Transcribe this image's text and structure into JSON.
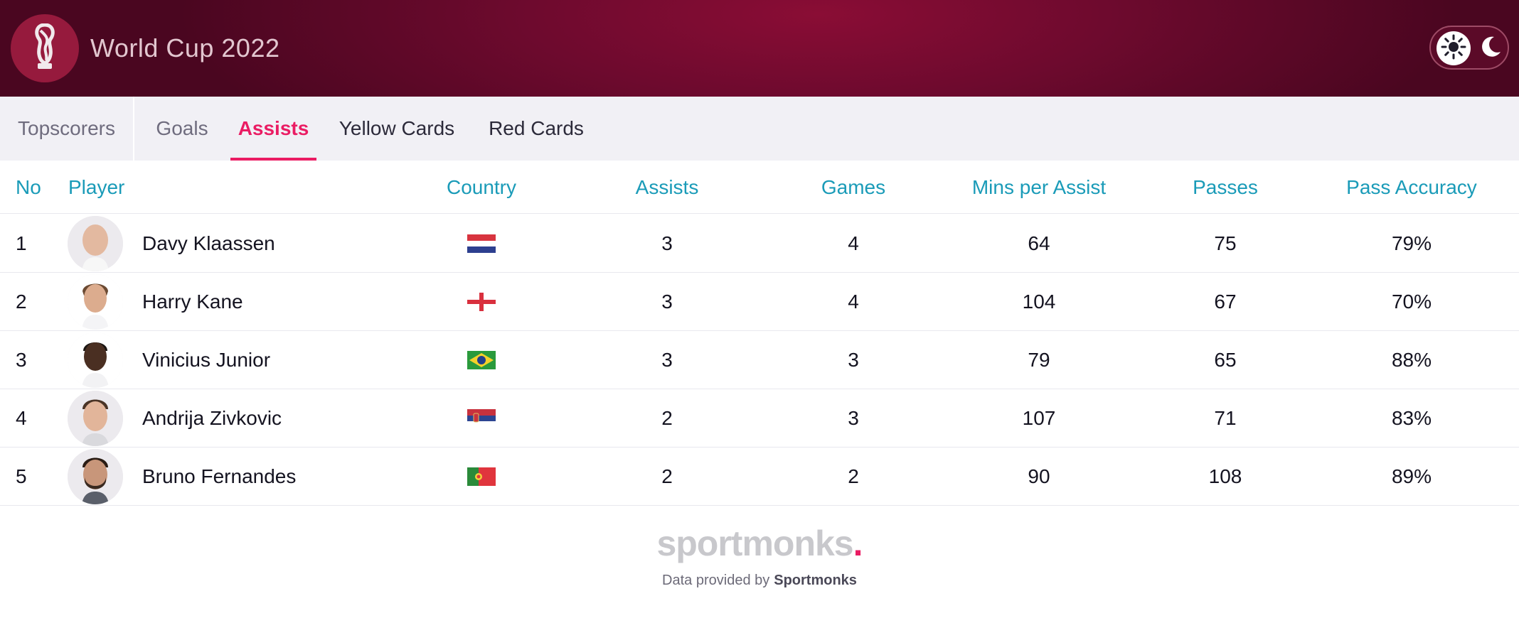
{
  "header": {
    "title": "World Cup 2022",
    "logo_icon": "world-cup-trophy-icon",
    "theme_toggle": {
      "light_icon": "sun-icon",
      "dark_icon": "moon-icon",
      "selected": "light"
    }
  },
  "tabs": [
    {
      "label": "Topscorers",
      "active": false
    },
    {
      "label": "Goals",
      "active": false
    },
    {
      "label": "Assists",
      "active": true
    },
    {
      "label": "Yellow Cards",
      "active": false
    },
    {
      "label": "Red Cards",
      "active": false
    }
  ],
  "table": {
    "columns": [
      "No",
      "Player",
      "Country",
      "Assists",
      "Games",
      "Mins per Assist",
      "Passes",
      "Pass Accuracy"
    ],
    "rows": [
      {
        "no": "1",
        "player": "Davy Klaassen",
        "country_flag": "netherlands-flag",
        "assists": "3",
        "games": "4",
        "mins_per_assist": "64",
        "passes": "75",
        "pass_accuracy": "79%"
      },
      {
        "no": "2",
        "player": "Harry Kane",
        "country_flag": "england-flag",
        "assists": "3",
        "games": "4",
        "mins_per_assist": "104",
        "passes": "67",
        "pass_accuracy": "70%"
      },
      {
        "no": "3",
        "player": "Vinicius Junior",
        "country_flag": "brazil-flag",
        "assists": "3",
        "games": "3",
        "mins_per_assist": "79",
        "passes": "65",
        "pass_accuracy": "88%"
      },
      {
        "no": "4",
        "player": "Andrija Zivkovic",
        "country_flag": "serbia-flag",
        "assists": "2",
        "games": "3",
        "mins_per_assist": "107",
        "passes": "71",
        "pass_accuracy": "83%"
      },
      {
        "no": "5",
        "player": "Bruno Fernandes",
        "country_flag": "portugal-flag",
        "assists": "2",
        "games": "2",
        "mins_per_assist": "90",
        "passes": "108",
        "pass_accuracy": "89%"
      }
    ]
  },
  "footer": {
    "logo_text": "sportmonks",
    "logo_dot": ".",
    "credit_prefix": "Data provided by",
    "credit_brand": "Sportmonks"
  },
  "colors": {
    "accent": "#ea1c63",
    "header_bg": "#6e0a2e",
    "column_header": "#1a9bb8",
    "tab_bar_bg": "#f1f0f5"
  }
}
